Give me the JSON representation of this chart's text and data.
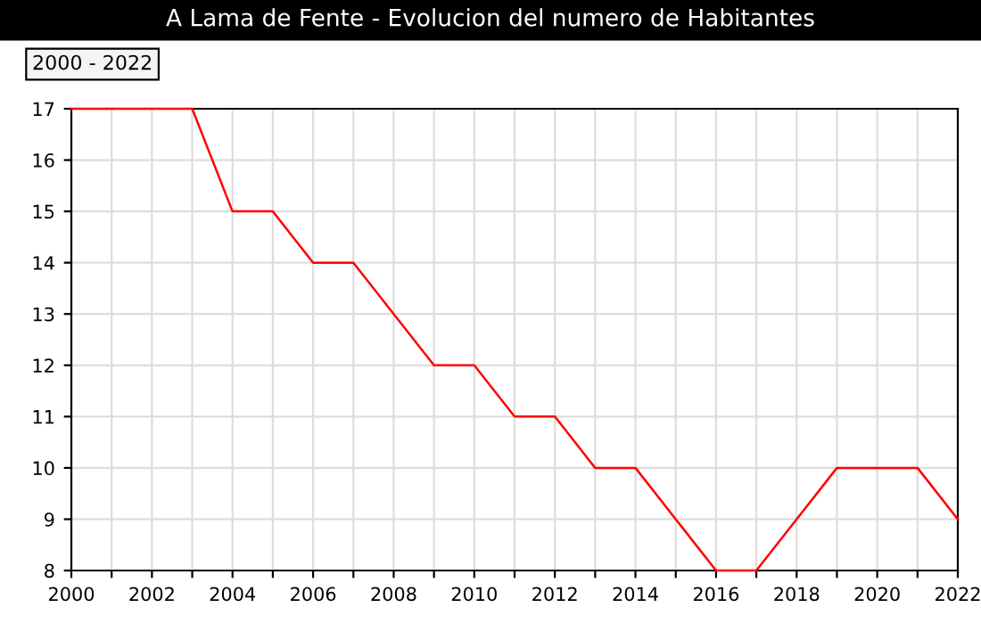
{
  "chart_data": {
    "type": "line",
    "title": "A Lama de Fente - Evolucion del numero de Habitantes",
    "annotations": [
      "2000 - 2022"
    ],
    "x": [
      2000,
      2001,
      2002,
      2003,
      2004,
      2005,
      2006,
      2007,
      2008,
      2009,
      2010,
      2011,
      2012,
      2013,
      2014,
      2015,
      2016,
      2017,
      2018,
      2019,
      2020,
      2021,
      2022
    ],
    "series": [
      {
        "color": "#ff0000",
        "values": [
          17,
          17,
          17,
          17,
          15,
          15,
          14,
          14,
          13,
          12,
          12,
          11,
          11,
          10,
          10,
          9,
          8,
          8,
          9,
          10,
          10,
          10,
          9
        ]
      }
    ],
    "xlim": [
      2000,
      2022
    ],
    "xticks": [
      2000,
      {
        "value": 2001,
        "label": null
      },
      2002,
      {
        "value": 2003,
        "label": null
      },
      2004,
      {
        "value": 2005,
        "label": null
      },
      2006,
      {
        "value": 2007,
        "label": null
      },
      2008,
      {
        "value": 2009,
        "label": null
      },
      2010,
      {
        "value": 2011,
        "label": null
      },
      2012,
      {
        "value": 2013,
        "label": null
      },
      2014,
      {
        "value": 2015,
        "label": null
      },
      2016,
      {
        "value": 2017,
        "label": null
      },
      2018,
      {
        "value": 2019,
        "label": null
      },
      2020,
      {
        "value": 2021,
        "label": null
      },
      2022
    ],
    "ylim": [
      8,
      17
    ],
    "yticks": [
      8,
      9,
      10,
      11,
      12,
      13,
      14,
      15,
      16,
      17
    ],
    "grid": true,
    "marker": "none",
    "line_style": "solid"
  }
}
